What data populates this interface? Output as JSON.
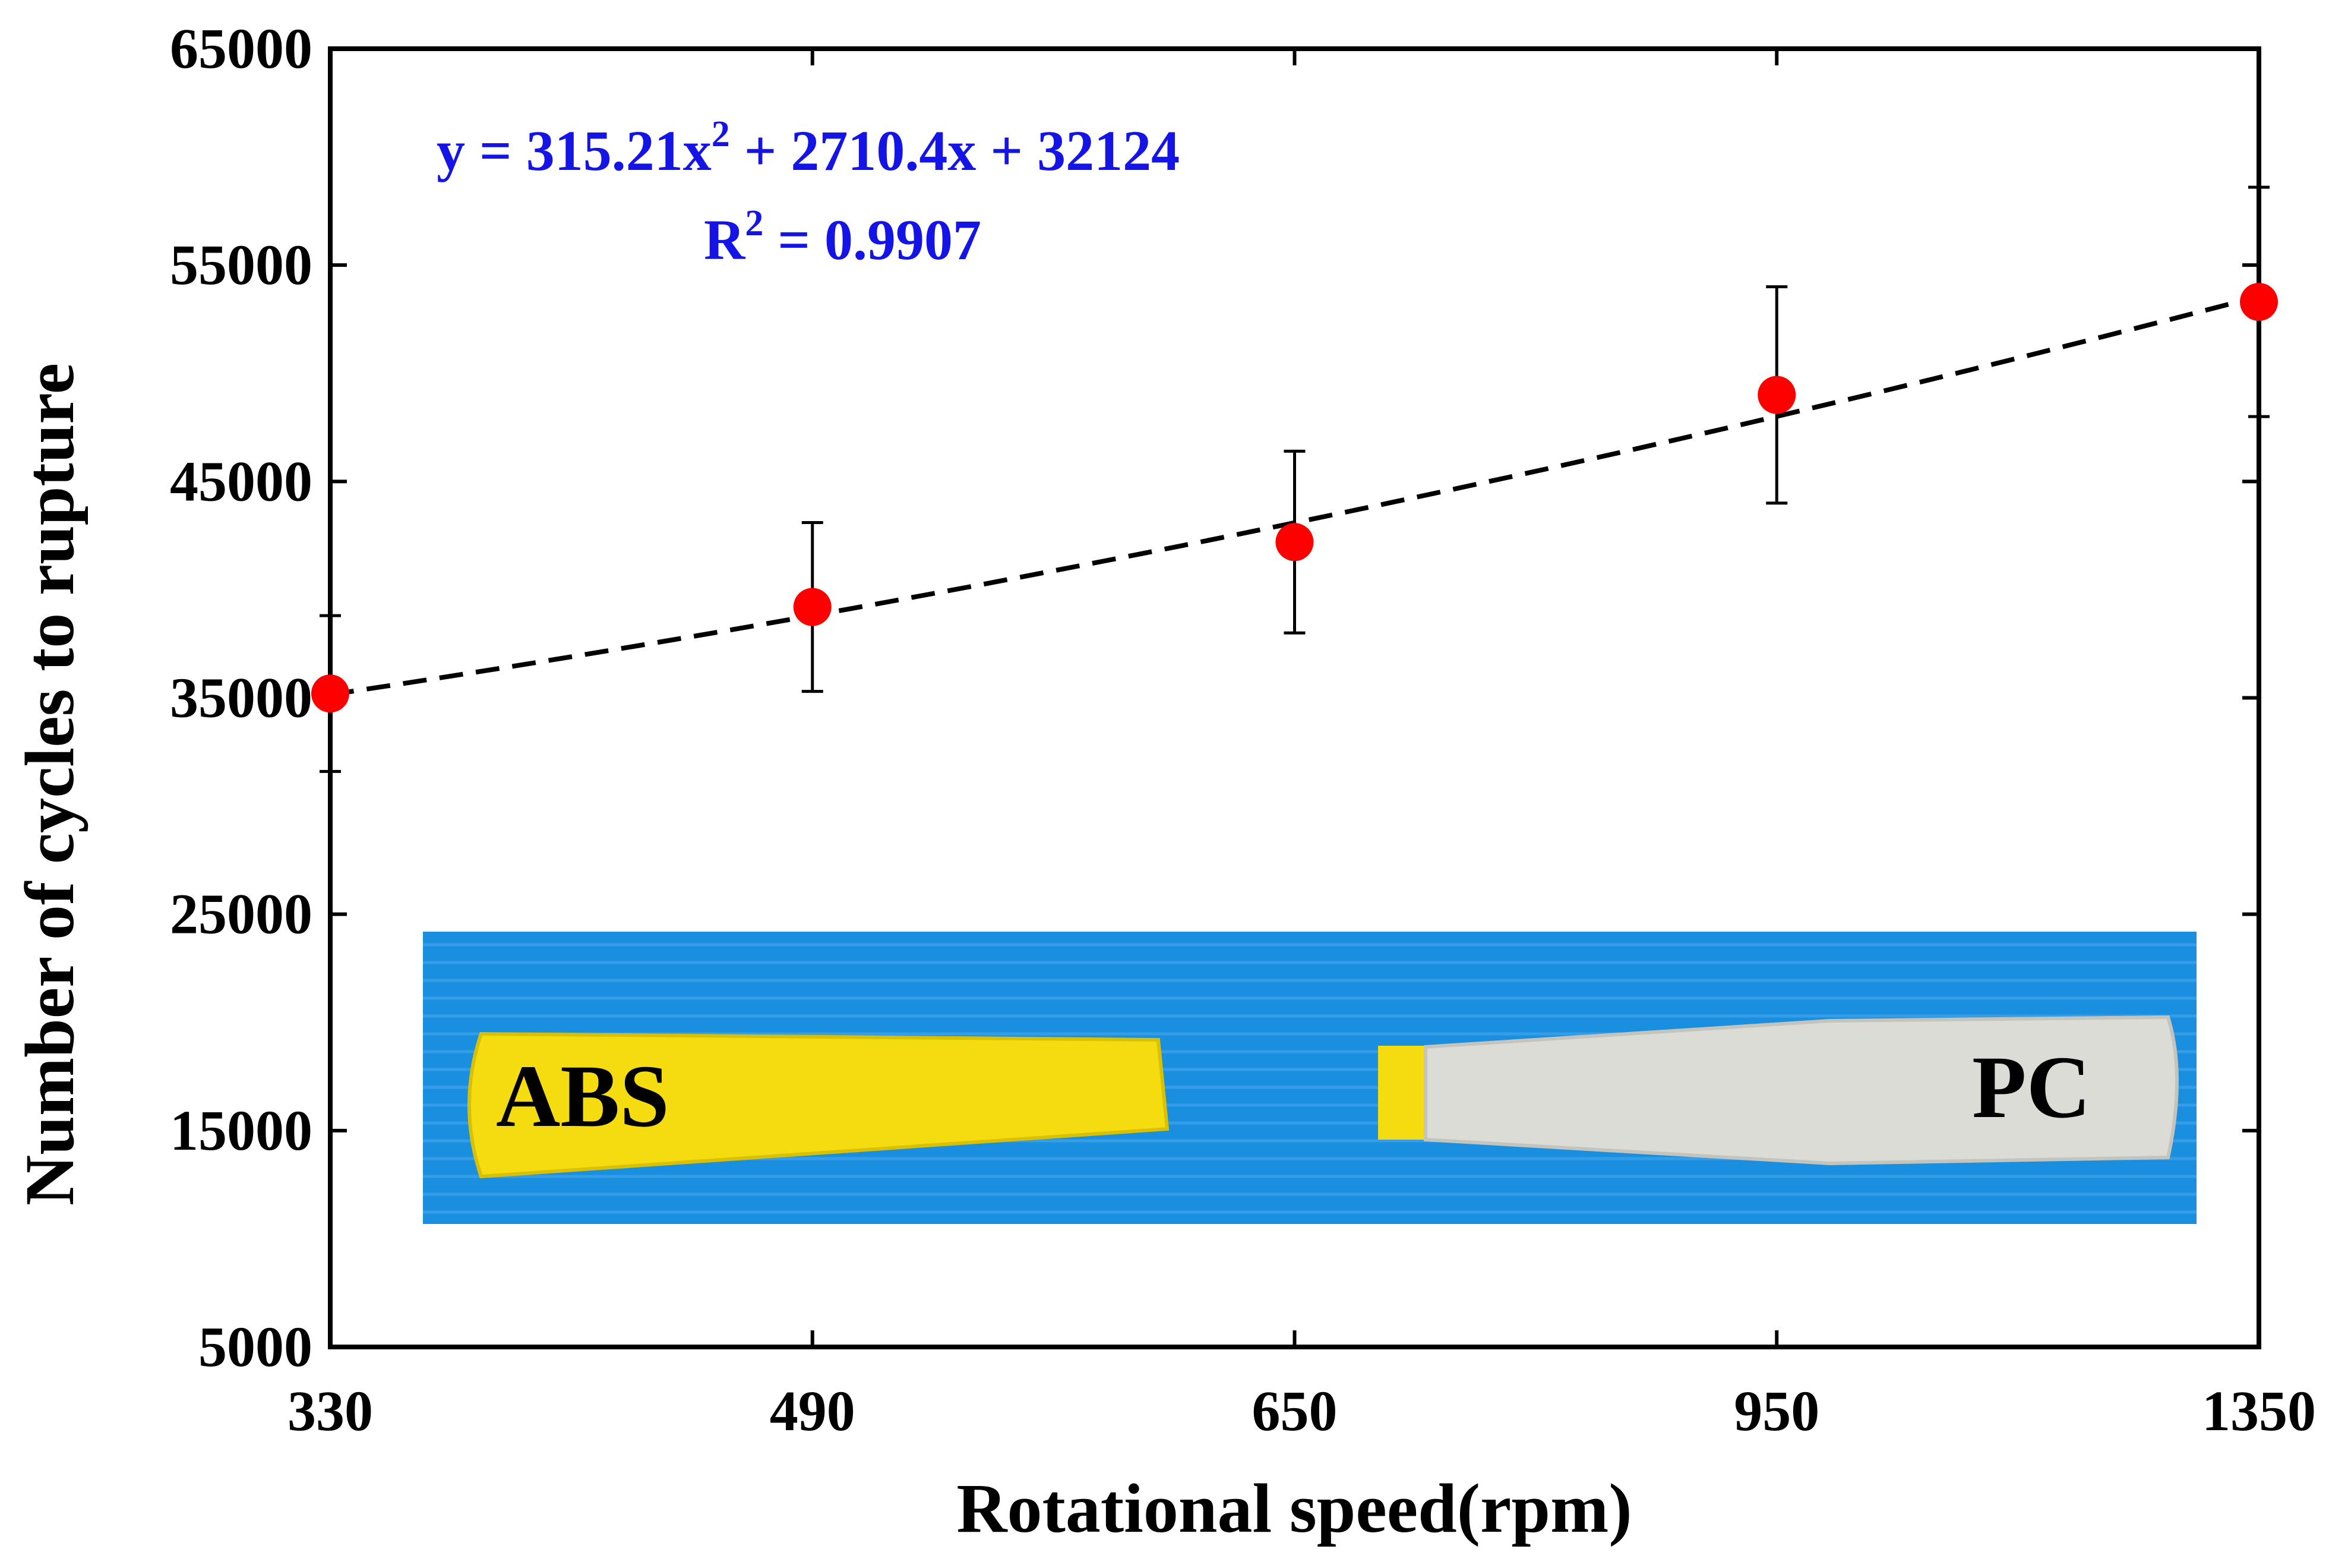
{
  "chart_data": {
    "type": "scatter",
    "categories": [
      "330",
      "490",
      "650",
      "950",
      "1350"
    ],
    "x_positions": [
      1,
      2,
      3,
      4,
      5
    ],
    "y_ticks": [
      5000,
      15000,
      25000,
      35000,
      45000,
      55000,
      65000
    ],
    "ylim": [
      5000,
      65000
    ],
    "series": [
      {
        "values": [
          35200,
          39200,
          42200,
          49000,
          53300
        ],
        "error": [
          3600,
          3900,
          4200,
          5000,
          5300
        ],
        "color": "#ff0000"
      }
    ],
    "trendline": {
      "type": "polynomial-2",
      "coefficients": [
        315.21,
        2710.4,
        32124
      ],
      "equation_prefix": "y = 315.21x",
      "equation_suffix": " + 2710.4x + 32124",
      "r2_prefix": "R",
      "r2_suffix": " = 0.9907",
      "superscript": "2",
      "color": "#000000"
    },
    "xlabel": "Rotational speed(rpm)",
    "ylabel": "Number of cycles to rupture",
    "grid": false,
    "inset_photo": {
      "labels": [
        "ABS",
        "PC"
      ],
      "background_color": "#1a8fe0",
      "left_specimen_color": "#f5dc10",
      "right_specimen_color": "#dcdcd6"
    }
  }
}
